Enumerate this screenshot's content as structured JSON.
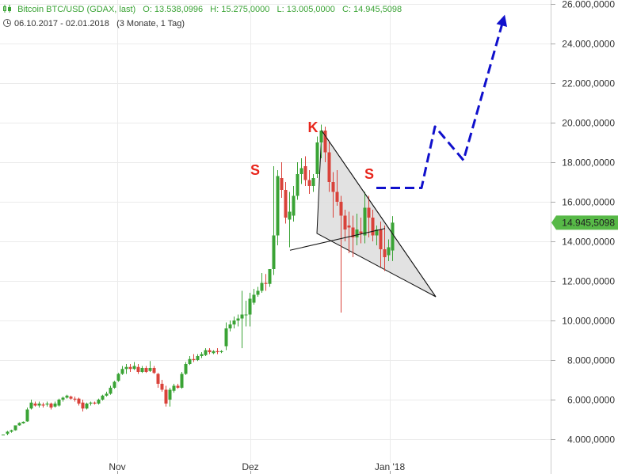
{
  "header": {
    "instrument": "Bitcoin BTC/USD (GDAX, last)",
    "open": "O: 13.538,0996",
    "high": "H: 15.275,0000",
    "low": "L: 13.005,0000",
    "close": "C: 14.945,5098",
    "date_range": "06.10.2017 - 02.01.2018",
    "interval": "(3 Monate, 1 Tag)"
  },
  "chart_data": {
    "type": "candlestick",
    "x_tick_labels": [
      "Nov",
      "Dez",
      "Jan '18"
    ],
    "y_tick_labels": [
      "4.000,0000",
      "6.000,0000",
      "8.000,0000",
      "10.000,0000",
      "12.000,0000",
      "14.000,0000",
      "16.000,0000",
      "18.000,0000",
      "20.000,0000",
      "22.000,0000",
      "24.000,0000",
      "26.000,0000"
    ],
    "y_tick_values": [
      4000,
      6000,
      8000,
      10000,
      12000,
      14000,
      16000,
      18000,
      20000,
      22000,
      24000,
      26000
    ],
    "ylim": [
      3400,
      26000
    ],
    "last_price_label": "14.945,5098",
    "grid": true,
    "colors": {
      "up": "#3aa335",
      "down": "#d9423a",
      "triangle": "#dddddd",
      "projection": "#1010cc",
      "annotation": "#e8261c",
      "last_label_bg": "#57b947"
    },
    "annotations": [
      {
        "text": "S",
        "position": "left shoulder"
      },
      {
        "text": "K",
        "position": "head"
      },
      {
        "text": "S",
        "position": "right shoulder"
      }
    ],
    "candles": [
      [
        3.5,
        4230,
        4230,
        4230,
        4230
      ],
      [
        9,
        4270,
        4420,
        4200,
        4380
      ],
      [
        14,
        4380,
        4480,
        4330,
        4450
      ],
      [
        19,
        4450,
        4700,
        4430,
        4700
      ],
      [
        24,
        4700,
        4850,
        4680,
        4820
      ],
      [
        29,
        4800,
        4900,
        4780,
        4880
      ],
      [
        34,
        4900,
        5600,
        4880,
        5500
      ],
      [
        39,
        5550,
        6000,
        5500,
        5850
      ],
      [
        44,
        5800,
        5900,
        5650,
        5700
      ],
      [
        49,
        5700,
        5900,
        5600,
        5800
      ],
      [
        54,
        5750,
        5850,
        5600,
        5700
      ],
      [
        59,
        5750,
        5900,
        5650,
        5800
      ],
      [
        64,
        5800,
        5850,
        5500,
        5600
      ],
      [
        69,
        5650,
        5900,
        5600,
        5800
      ],
      [
        74,
        5700,
        6050,
        5650,
        6000
      ],
      [
        79,
        6000,
        6150,
        5900,
        6100
      ],
      [
        84,
        6100,
        6250,
        6050,
        6200
      ],
      [
        89,
        6150,
        6200,
        6000,
        6050
      ],
      [
        94,
        6050,
        6150,
        5900,
        6000
      ],
      [
        99,
        6050,
        6100,
        5700,
        5800
      ],
      [
        104,
        5850,
        6000,
        5400,
        5550
      ],
      [
        109,
        5550,
        5850,
        5500,
        5800
      ],
      [
        114,
        5800,
        5900,
        5700,
        5850
      ],
      [
        119,
        5850,
        5900,
        5750,
        5800
      ],
      [
        124,
        5800,
        6050,
        5750,
        6000
      ],
      [
        129,
        6000,
        6250,
        5950,
        6200
      ],
      [
        134,
        6200,
        6400,
        6150,
        6300
      ],
      [
        139,
        6300,
        6700,
        6250,
        6600
      ],
      [
        144,
        6600,
        6950,
        6550,
        6900
      ],
      [
        149,
        6950,
        7350,
        6900,
        7300
      ],
      [
        154,
        7300,
        7700,
        7250,
        7550
      ],
      [
        159,
        7550,
        7800,
        7300,
        7650
      ],
      [
        164,
        7650,
        7800,
        7400,
        7550
      ],
      [
        169,
        7550,
        7900,
        7500,
        7700
      ],
      [
        174,
        7650,
        7800,
        7300,
        7400
      ],
      [
        179,
        7400,
        7700,
        7350,
        7600
      ],
      [
        184,
        7600,
        7700,
        7350,
        7400
      ],
      [
        189,
        7450,
        7950,
        7400,
        7600
      ],
      [
        194,
        7600,
        7700,
        7300,
        7350
      ],
      [
        199,
        7300,
        7350,
        6600,
        6800
      ],
      [
        204,
        6800,
        7000,
        6400,
        6500
      ],
      [
        209,
        6500,
        6700,
        5650,
        5800
      ],
      [
        214,
        6000,
        6600,
        5650,
        6500
      ],
      [
        219,
        6450,
        6800,
        6350,
        6700
      ],
      [
        224,
        6700,
        6800,
        6550,
        6600
      ],
      [
        229,
        6600,
        7400,
        6550,
        7300
      ],
      [
        234,
        7300,
        7900,
        7250,
        7800
      ],
      [
        239,
        7800,
        8200,
        7750,
        8050
      ],
      [
        244,
        8050,
        8300,
        7900,
        8000
      ],
      [
        249,
        8000,
        8300,
        7950,
        8200
      ],
      [
        254,
        8200,
        8400,
        8100,
        8300
      ],
      [
        259,
        8250,
        8600,
        8200,
        8500
      ],
      [
        264,
        8500,
        8600,
        8300,
        8400
      ],
      [
        269,
        8350,
        8500,
        8300,
        8450
      ],
      [
        274,
        8450,
        8600,
        8300,
        8400
      ],
      [
        279,
        8400,
        8500,
        8350,
        8450
      ],
      [
        285,
        8700,
        9900,
        8500,
        9600
      ],
      [
        290,
        9600,
        10000,
        9450,
        9800
      ],
      [
        295,
        9800,
        10200,
        9600,
        10000
      ],
      [
        300,
        10000,
        10300,
        9700,
        10100
      ],
      [
        305,
        10100,
        11500,
        8600,
        10300
      ],
      [
        310,
        10300,
        11000,
        9700,
        10300
      ],
      [
        315,
        10300,
        11400,
        9700,
        11100
      ],
      [
        320,
        10900,
        11600,
        10800,
        11300
      ],
      [
        325,
        11300,
        11700,
        11200,
        11500
      ],
      [
        330,
        11500,
        12400,
        11400,
        11900
      ],
      [
        335,
        11900,
        12350,
        11500,
        11850
      ],
      [
        340,
        11850,
        12500,
        11700,
        12600
      ],
      [
        345,
        12600,
        17800,
        12300,
        14300
      ],
      [
        350,
        14300,
        17600,
        13800,
        17300
      ],
      [
        355,
        17200,
        18000,
        16200,
        16600
      ],
      [
        360,
        16600,
        17000,
        14900,
        15200
      ],
      [
        365,
        15100,
        16500,
        13700,
        15500
      ],
      [
        370,
        15300,
        16800,
        15000,
        16300
      ],
      [
        375,
        16300,
        18000,
        16100,
        17400
      ],
      [
        380,
        17400,
        18200,
        16900,
        17700
      ],
      [
        385,
        17800,
        18300,
        16800,
        17100
      ],
      [
        390,
        17100,
        17600,
        16400,
        16800
      ],
      [
        395,
        16800,
        17400,
        16500,
        17200
      ],
      [
        400,
        17400,
        19300,
        17200,
        19000
      ],
      [
        405,
        19000,
        19900,
        18200,
        19600
      ],
      [
        410,
        19600,
        19800,
        18000,
        18500
      ],
      [
        415,
        18500,
        19000,
        16500,
        17000
      ],
      [
        420,
        17000,
        17500,
        15200,
        16500
      ],
      [
        425,
        16500,
        17600,
        15800,
        16000
      ],
      [
        430,
        16000,
        16300,
        10400,
        15300
      ],
      [
        435,
        15300,
        15600,
        14000,
        14600
      ],
      [
        440,
        14800,
        15500,
        13400,
        14700
      ],
      [
        445,
        14700,
        15300,
        13200,
        14200
      ],
      [
        450,
        14200,
        15400,
        13800,
        14600
      ],
      [
        455,
        14500,
        15200,
        13900,
        14400
      ],
      [
        460,
        14300,
        16500,
        13900,
        15700
      ],
      [
        465,
        15700,
        16300,
        14200,
        15200
      ],
      [
        470,
        15200,
        15600,
        14000,
        14300
      ],
      [
        475,
        14300,
        14800,
        13800,
        14600
      ],
      [
        480,
        14600,
        15000,
        12700,
        13600
      ],
      [
        485,
        13600,
        14800,
        12500,
        13200
      ],
      [
        490,
        13300,
        14100,
        13000,
        13700
      ],
      [
        495,
        13538,
        15275,
        13005,
        14945
      ]
    ],
    "pattern_triangle": [
      [
        406,
        19600
      ],
      [
        400,
        14400
      ],
      [
        550,
        11200
      ]
    ],
    "neckline": [
      [
        366,
        13550
      ],
      [
        486,
        14650
      ]
    ],
    "projection_path": [
      [
        475,
        16700
      ],
      [
        532,
        16700
      ],
      [
        549,
        19800
      ],
      [
        585,
        18100
      ],
      [
        636,
        25300
      ]
    ]
  }
}
